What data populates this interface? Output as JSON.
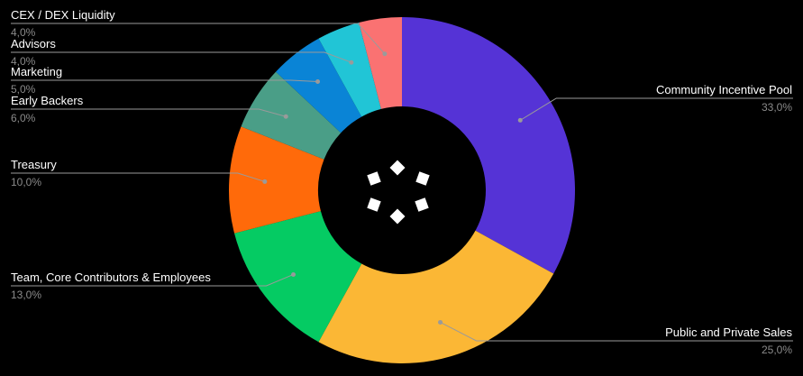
{
  "chart_data": {
    "type": "pie",
    "donut": true,
    "title": "",
    "legend": "none",
    "grid": false,
    "slices": [
      {
        "label": "Community Incentive Pool",
        "value": 33,
        "display": "33,0%",
        "color": "#5533d6",
        "side": "right"
      },
      {
        "label": "Public and Private Sales",
        "value": 25,
        "display": "25,0%",
        "color": "#fbb735",
        "side": "right"
      },
      {
        "label": "Team, Core Contributors & Employees",
        "value": 13,
        "display": "13,0%",
        "color": "#05cb63",
        "side": "left"
      },
      {
        "label": "Treasury",
        "value": 10,
        "display": "10,0%",
        "color": "#ff6a0a",
        "side": "left"
      },
      {
        "label": "Early Backers",
        "value": 6,
        "display": "6,0%",
        "color": "#4a9e87",
        "side": "left"
      },
      {
        "label": "Marketing",
        "value": 5,
        "display": "5,0%",
        "color": "#0a84d6",
        "side": "left"
      },
      {
        "label": "Advisors",
        "value": 4,
        "display": "4,0%",
        "color": "#21c5d6",
        "side": "left"
      },
      {
        "label": "CEX / DEX Liquidity",
        "value": 4,
        "display": "4,0%",
        "color": "#fa7272",
        "side": "left"
      }
    ]
  },
  "center_logo": {
    "icon": "diamond-cluster-logo",
    "color": "#ffffff"
  }
}
